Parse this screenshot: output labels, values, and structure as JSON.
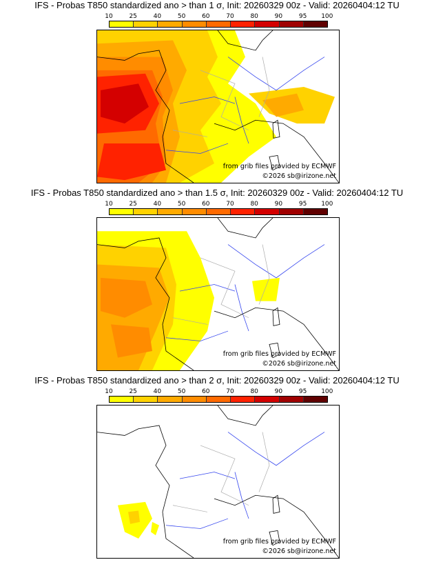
{
  "panels": [
    {
      "title": "IFS - Probas T850  standardized ano > than 1 σ, Init: 20260329 00z - Valid: 20260404:12 TU"
    },
    {
      "title": "IFS - Probas T850  standardized ano > than 1.5 σ, Init: 20260329 00z - Valid: 20260404:12 TU"
    },
    {
      "title": "IFS - Probas T850  standardized ano > than 2 σ, Init: 20260329 00z - Valid: 20260404:12 TU"
    }
  ],
  "colorbar": {
    "labels": [
      "10",
      "25",
      "40",
      "50",
      "60",
      "70",
      "80",
      "90",
      "95",
      "100"
    ],
    "colors": [
      "#ffff00",
      "#ffd200",
      "#ffaa00",
      "#ff8c00",
      "#ff6a00",
      "#ff2200",
      "#d40000",
      "#a00000",
      "#600000"
    ]
  },
  "credits": {
    "source": "from grib files provided by ECMWF",
    "copyright": "©2026 sb@irizone.net"
  }
}
